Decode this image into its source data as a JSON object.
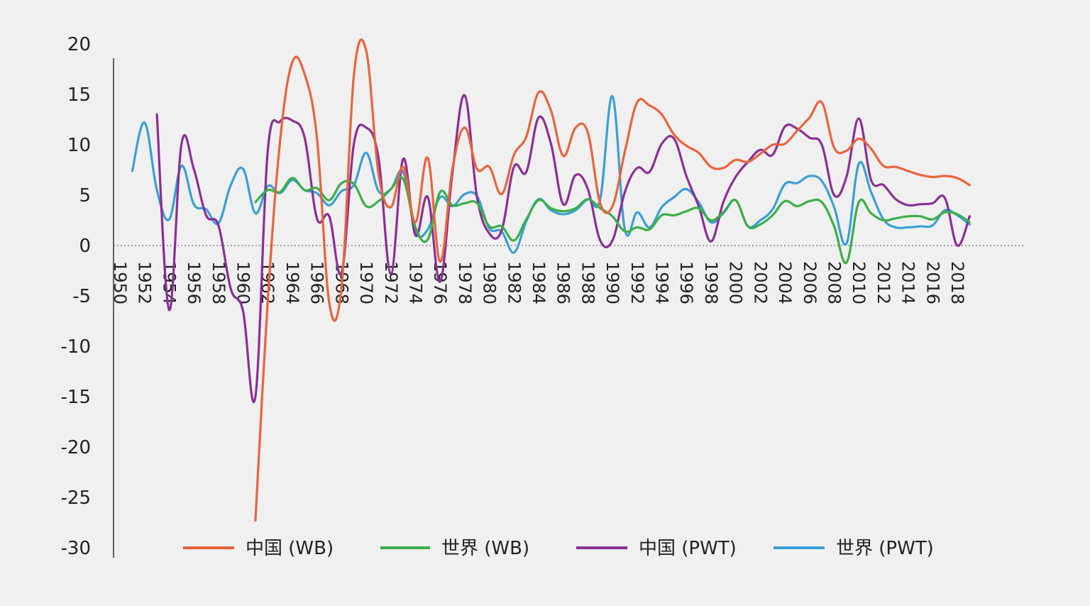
{
  "chart_data": {
    "type": "line",
    "title": "",
    "xlabel": "",
    "ylabel": "",
    "ylim": [
      -30,
      20
    ],
    "xlim": [
      1950,
      2020
    ],
    "y_ticks": [
      "20",
      "15",
      "10",
      "5",
      "0",
      "-5",
      "-10",
      "-15",
      "-20",
      "-25",
      "-30"
    ],
    "x_ticks": [
      "1950",
      "1952",
      "1954",
      "1956",
      "1958",
      "1960",
      "1962",
      "1964",
      "1966",
      "1968",
      "1970",
      "1972",
      "1974",
      "1976",
      "1978",
      "1980",
      "1982",
      "1984",
      "1986",
      "1988",
      "1990",
      "1992",
      "1994",
      "1996",
      "1998",
      "2000",
      "2002",
      "2004",
      "2006",
      "2008",
      "2010",
      "2012",
      "2014",
      "2016",
      "2018"
    ],
    "zero_line": "dotted",
    "legend_position": "bottom",
    "series": [
      {
        "name": "中国 (WB)",
        "color": "#e8643c",
        "x": [
          1961,
          1962,
          1963,
          1964,
          1965,
          1966,
          1967,
          1968,
          1969,
          1970,
          1971,
          1972,
          1973,
          1974,
          1975,
          1976,
          1977,
          1978,
          1979,
          1980,
          1981,
          1982,
          1983,
          1984,
          1985,
          1986,
          1987,
          1988,
          1989,
          1990,
          1991,
          1992,
          1993,
          1994,
          1995,
          1996,
          1997,
          1998,
          1999,
          2000,
          2001,
          2002,
          2003,
          2004,
          2005,
          2006,
          2007,
          2008,
          2009,
          2010,
          2011,
          2012,
          2013,
          2014,
          2015,
          2016,
          2017,
          2018,
          2019
        ],
        "y": [
          -27.3,
          -5.6,
          10.3,
          18.2,
          17.0,
          10.7,
          -5.7,
          -4.1,
          16.9,
          19.3,
          7.1,
          3.8,
          7.8,
          2.3,
          8.7,
          -1.6,
          7.6,
          11.7,
          7.6,
          7.8,
          5.1,
          9.0,
          10.8,
          15.2,
          13.4,
          8.9,
          11.7,
          11.2,
          4.2,
          3.9,
          9.3,
          14.2,
          13.9,
          13.0,
          11.0,
          9.9,
          9.2,
          7.8,
          7.7,
          8.5,
          8.3,
          9.1,
          10.0,
          10.1,
          11.4,
          12.7,
          14.2,
          9.7,
          9.4,
          10.6,
          9.6,
          7.9,
          7.8,
          7.4,
          7.0,
          6.8,
          6.9,
          6.7,
          6.0
        ]
      },
      {
        "name": "世界 (WB)",
        "color": "#3cae49",
        "x": [
          1961,
          1962,
          1963,
          1964,
          1965,
          1966,
          1967,
          1968,
          1969,
          1970,
          1971,
          1972,
          1973,
          1974,
          1975,
          1976,
          1977,
          1978,
          1979,
          1980,
          1981,
          1982,
          1983,
          1984,
          1985,
          1986,
          1987,
          1988,
          1989,
          1990,
          1991,
          1992,
          1993,
          1994,
          1995,
          1996,
          1997,
          1998,
          1999,
          2000,
          2001,
          2002,
          2003,
          2004,
          2005,
          2006,
          2007,
          2008,
          2009,
          2010,
          2011,
          2012,
          2013,
          2014,
          2015,
          2016,
          2017,
          2018,
          2019
        ],
        "y": [
          4.3,
          5.5,
          5.3,
          6.7,
          5.5,
          5.7,
          4.5,
          6.2,
          6.1,
          3.9,
          4.4,
          5.6,
          6.6,
          1.8,
          0.6,
          5.3,
          4.0,
          4.2,
          4.2,
          1.9,
          1.9,
          0.5,
          2.6,
          4.5,
          3.7,
          3.4,
          3.7,
          4.6,
          3.7,
          2.9,
          1.4,
          1.8,
          1.6,
          3.0,
          3.0,
          3.4,
          3.7,
          2.5,
          3.3,
          4.5,
          1.9,
          2.1,
          3.0,
          4.4,
          3.9,
          4.4,
          4.3,
          1.9,
          -1.7,
          4.3,
          3.2,
          2.5,
          2.7,
          2.9,
          2.9,
          2.6,
          3.3,
          3.1,
          2.3
        ]
      },
      {
        "name": "中国 (PWT)",
        "color": "#8b2f95",
        "x": [
          1953,
          1954,
          1955,
          1956,
          1957,
          1958,
          1959,
          1960,
          1961,
          1962,
          1963,
          1964,
          1965,
          1966,
          1967,
          1968,
          1969,
          1970,
          1971,
          1972,
          1973,
          1974,
          1975,
          1976,
          1977,
          1978,
          1979,
          1980,
          1981,
          1982,
          1983,
          1984,
          1985,
          1986,
          1987,
          1988,
          1989,
          1990,
          1991,
          1992,
          1993,
          1994,
          1995,
          1996,
          1997,
          1998,
          1999,
          2000,
          2001,
          2002,
          2003,
          2004,
          2005,
          2006,
          2007,
          2008,
          2009,
          2010,
          2011,
          2012,
          2013,
          2014,
          2015,
          2016,
          2017,
          2018,
          2019
        ],
        "y": [
          13.0,
          -6.4,
          10.1,
          7.6,
          3.0,
          2.0,
          -4.3,
          -6.5,
          -15.0,
          9.3,
          12.3,
          12.4,
          10.7,
          2.7,
          2.9,
          -2.7,
          10.1,
          11.7,
          8.7,
          -2.8,
          8.6,
          1.0,
          4.8,
          -3.6,
          7.2,
          14.9,
          4.8,
          1.2,
          1.5,
          7.8,
          7.3,
          12.7,
          10.1,
          4.1,
          7.0,
          5.6,
          0.5,
          0.5,
          5.3,
          7.7,
          7.3,
          10.1,
          10.6,
          6.9,
          3.9,
          0.4,
          4.3,
          6.8,
          8.3,
          9.5,
          9.0,
          11.8,
          11.6,
          10.7,
          10.0,
          5.0,
          6.8,
          12.6,
          6.5,
          6.0,
          4.6,
          4.0,
          4.1,
          4.2,
          4.7,
          0.0,
          2.9
        ]
      },
      {
        "name": "世界 (PWT)",
        "color": "#3a9fd6",
        "x": [
          1951,
          1952,
          1953,
          1954,
          1955,
          1956,
          1957,
          1958,
          1959,
          1960,
          1961,
          1962,
          1963,
          1964,
          1965,
          1966,
          1967,
          1968,
          1969,
          1970,
          1971,
          1972,
          1973,
          1974,
          1975,
          1976,
          1977,
          1978,
          1979,
          1980,
          1981,
          1982,
          1983,
          1984,
          1985,
          1986,
          1987,
          1988,
          1989,
          1990,
          1991,
          1992,
          1993,
          1994,
          1995,
          1996,
          1997,
          1998,
          1999,
          2000,
          2001,
          2002,
          2003,
          2004,
          2005,
          2006,
          2007,
          2008,
          2009,
          2010,
          2011,
          2012,
          2013,
          2014,
          2015,
          2016,
          2017,
          2018,
          2019
        ],
        "y": [
          7.4,
          12.2,
          5.5,
          2.6,
          7.9,
          4.1,
          3.6,
          2.2,
          6.0,
          7.6,
          3.2,
          5.9,
          5.2,
          6.5,
          5.5,
          5.2,
          4.0,
          5.4,
          6.0,
          9.2,
          5.4,
          5.6,
          7.3,
          1.4,
          1.6,
          4.8,
          3.9,
          5.1,
          4.9,
          1.7,
          1.4,
          -0.7,
          2.4,
          4.6,
          3.5,
          3.1,
          3.5,
          4.6,
          4.6,
          14.8,
          1.6,
          3.3,
          1.8,
          3.8,
          4.8,
          5.6,
          4.3,
          2.3,
          3.2,
          4.5,
          1.9,
          2.5,
          3.6,
          6.1,
          6.2,
          6.9,
          6.4,
          3.8,
          0.2,
          8.1,
          5.3,
          2.6,
          1.8,
          1.8,
          1.9,
          2.0,
          3.5,
          3.0,
          2.1
        ]
      }
    ]
  }
}
